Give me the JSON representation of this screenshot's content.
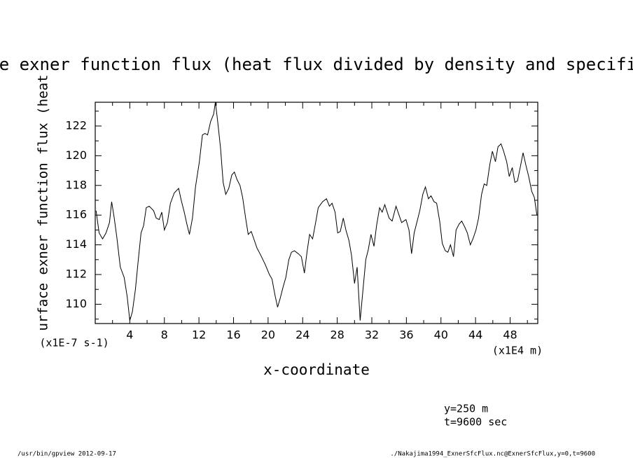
{
  "chart_data": {
    "type": "line",
    "title": "surface exner function flux (heat flux divided by density and specific heat)",
    "x_label": "x-coordinate",
    "y_label": "surface exner function flux (heat flux divided by density and specific heat)",
    "x_unit": "(x1E4 m)",
    "y_unit": "(x1E-7 s-1)",
    "annotations": [
      "y=250 m",
      "t=9600 sec"
    ],
    "footer_left": "/usr/bin/gpview 2012-09-17",
    "footer_right": "./Nakajima1994_ExnerSfcFlux.nc@ExnerSfcFlux,y=0,t=9600",
    "xlim": [
      0,
      51.2
    ],
    "ylim": [
      108.7,
      123.6
    ],
    "xticks": [
      4,
      8,
      12,
      16,
      20,
      24,
      28,
      32,
      36,
      40,
      44,
      48
    ],
    "yticks": [
      110,
      112,
      114,
      116,
      118,
      120,
      122
    ],
    "xminorticks": [
      2,
      6,
      10,
      14,
      18,
      22,
      26,
      30,
      34,
      38,
      42,
      46,
      50
    ],
    "yminorticks": [
      109,
      111,
      113,
      115,
      117,
      119,
      121,
      123
    ],
    "color": "#000000",
    "x": [
      0.1,
      0.45,
      0.85,
      1.25,
      1.65,
      1.9,
      2.2,
      2.5,
      2.9,
      3.35,
      3.7,
      4.0,
      4.3,
      4.65,
      4.95,
      5.3,
      5.6,
      5.9,
      6.25,
      6.75,
      7.05,
      7.4,
      7.7,
      8.0,
      8.35,
      8.7,
      9.15,
      9.65,
      9.95,
      10.3,
      10.6,
      10.9,
      11.25,
      11.6,
      12.05,
      12.4,
      12.7,
      13.0,
      13.35,
      13.7,
      13.9,
      14.15,
      14.5,
      14.8,
      15.1,
      15.45,
      15.8,
      16.1,
      16.4,
      16.75,
      17.05,
      17.4,
      17.7,
      18.05,
      18.35,
      18.7,
      19.15,
      19.65,
      20.15,
      20.45,
      20.8,
      21.1,
      21.4,
      21.75,
      22.05,
      22.4,
      22.7,
      23.05,
      23.5,
      23.85,
      24.2,
      24.5,
      24.8,
      25.15,
      25.5,
      25.8,
      26.3,
      26.75,
      27.1,
      27.4,
      27.75,
      28.05,
      28.35,
      28.7,
      29.0,
      29.35,
      29.65,
      30.0,
      30.3,
      30.65,
      30.95,
      31.3,
      31.6,
      31.9,
      32.25,
      32.55,
      32.9,
      33.2,
      33.5,
      34.0,
      34.35,
      34.8,
      35.15,
      35.45,
      35.95,
      36.3,
      36.6,
      36.9,
      37.25,
      37.55,
      37.9,
      38.2,
      38.55,
      38.85,
      39.2,
      39.5,
      39.85,
      40.15,
      40.5,
      40.8,
      41.1,
      41.45,
      41.75,
      42.1,
      42.4,
      42.75,
      43.05,
      43.4,
      43.7,
      44.05,
      44.35,
      44.7,
      45.0,
      45.3,
      45.65,
      45.95,
      46.3,
      46.6,
      46.95,
      47.25,
      47.6,
      47.9,
      48.25,
      48.55,
      48.85,
      49.2,
      49.5,
      49.85,
      50.15,
      50.5,
      50.8,
      51.1
    ],
    "values": [
      116.3,
      114.8,
      114.4,
      114.8,
      115.5,
      116.9,
      115.8,
      114.5,
      112.5,
      111.8,
      110.5,
      108.9,
      109.5,
      111.0,
      112.8,
      114.8,
      115.3,
      116.5,
      116.6,
      116.3,
      115.8,
      115.7,
      116.2,
      115.0,
      115.5,
      116.8,
      117.5,
      117.8,
      117.0,
      116.2,
      115.4,
      114.7,
      115.8,
      117.9,
      119.6,
      121.4,
      121.5,
      121.4,
      122.3,
      122.8,
      123.6,
      122.4,
      120.5,
      118.2,
      117.4,
      117.8,
      118.7,
      118.9,
      118.4,
      118.0,
      117.2,
      115.8,
      114.7,
      114.9,
      114.4,
      113.8,
      113.3,
      112.7,
      112.0,
      111.7,
      110.6,
      109.8,
      110.4,
      111.2,
      111.8,
      113.0,
      113.5,
      113.6,
      113.4,
      113.2,
      112.1,
      113.5,
      114.7,
      114.4,
      115.5,
      116.5,
      116.9,
      117.1,
      116.6,
      116.8,
      116.2,
      114.8,
      114.9,
      115.8,
      115.0,
      114.3,
      113.3,
      111.4,
      112.5,
      108.9,
      110.8,
      113.0,
      113.7,
      114.7,
      113.9,
      115.3,
      116.5,
      116.2,
      116.7,
      115.8,
      115.6,
      116.6,
      116.0,
      115.5,
      115.7,
      115.0,
      113.4,
      114.8,
      115.6,
      116.3,
      117.4,
      117.9,
      117.1,
      117.3,
      116.9,
      116.8,
      115.6,
      114.1,
      113.6,
      113.5,
      114.0,
      113.2,
      115.0,
      115.4,
      115.6,
      115.2,
      114.8,
      114.0,
      114.4,
      115.0,
      115.8,
      117.4,
      118.1,
      118.0,
      119.4,
      120.3,
      119.6,
      120.6,
      120.8,
      120.3,
      119.6,
      118.6,
      119.2,
      118.2,
      118.3,
      119.3,
      120.2,
      119.3,
      118.6,
      117.6,
      117.2,
      116.0
    ]
  }
}
